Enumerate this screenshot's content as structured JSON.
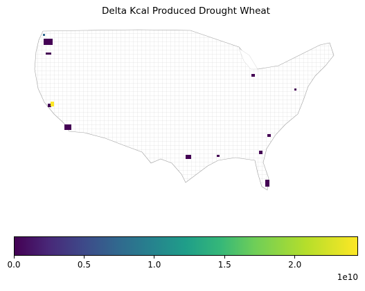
{
  "title": "Delta Kcal Produced Drought Wheat",
  "colorbar": {
    "colormap": "viridis",
    "range": [
      0,
      2.45
    ],
    "tick_labels": [
      "0.0",
      "0.5",
      "1.0",
      "1.5",
      "2.0"
    ],
    "multiplier_label": "1e10"
  },
  "colors": {
    "low": "#440154",
    "high": "#fde725",
    "mid_teal": "#1f9e89",
    "county_border": "#b9b9b9"
  }
}
